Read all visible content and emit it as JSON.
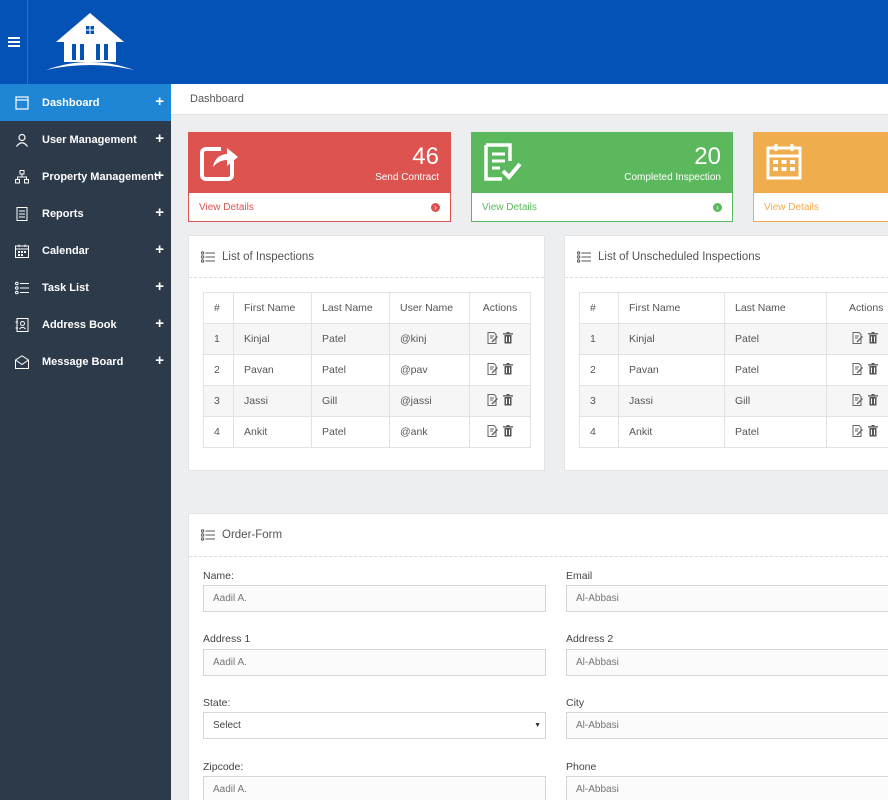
{
  "header": {
    "menu_icon": "hamburger-icon",
    "logo_icon": "house-logo-icon",
    "brand_color": "#0452b5"
  },
  "sidebar": {
    "items": [
      {
        "label": "Dashboard",
        "icon": "window-icon",
        "active": true
      },
      {
        "label": "User Management",
        "icon": "user-icon"
      },
      {
        "label": "Property Management",
        "icon": "sitemap-icon"
      },
      {
        "label": "Reports",
        "icon": "report-icon"
      },
      {
        "label": "Calendar",
        "icon": "calendar-icon"
      },
      {
        "label": "Task List",
        "icon": "list-icon"
      },
      {
        "label": "Address Book",
        "icon": "address-book-icon"
      },
      {
        "label": "Message Board",
        "icon": "envelope-icon"
      }
    ],
    "expand_symbol": "+"
  },
  "breadcrumb": {
    "text": "Dashboard"
  },
  "stats": [
    {
      "value": "46",
      "label": "Send Contract",
      "link": "View Details",
      "color": "#dc534f",
      "icon": "share-icon"
    },
    {
      "value": "20",
      "label": "Completed Inspection",
      "link": "View Details",
      "color": "#5cb85c",
      "icon": "checklist-icon"
    },
    {
      "value": "",
      "label": "",
      "link": "View Details",
      "color": "#f0ad4e",
      "icon": "calendar-icon"
    }
  ],
  "inspections": {
    "title": "List of Inspections",
    "columns": [
      "#",
      "First Name",
      "Last Name",
      "User Name",
      "Actions"
    ],
    "rows": [
      [
        "1",
        "Kinjal",
        "Patel",
        "@kinj"
      ],
      [
        "2",
        "Pavan",
        "Patel",
        "@pav"
      ],
      [
        "3",
        "Jassi",
        "Gill",
        "@jassi"
      ],
      [
        "4",
        "Ankit",
        "Patel",
        "@ank"
      ]
    ]
  },
  "unscheduled": {
    "title": "List of Unscheduled Inspections",
    "columns": [
      "#",
      "First Name",
      "Last Name",
      "Actions"
    ],
    "rows": [
      [
        "1",
        "Kinjal",
        "Patel"
      ],
      [
        "2",
        "Pavan",
        "Patel"
      ],
      [
        "3",
        "Jassi",
        "Gill"
      ],
      [
        "4",
        "Ankit",
        "Patel"
      ]
    ]
  },
  "order_form": {
    "title": "Order-Form",
    "name_label": "Name:",
    "name_placeholder": "Aadil A.",
    "email_label": "Email",
    "email_placeholder": "Al-Abbasi",
    "address1_label": "Address 1",
    "address1_placeholder": "Aadil A.",
    "address2_label": "Address 2",
    "address2_placeholder": "Al-Abbasi",
    "state_label": "State:",
    "state_value": "Select",
    "city_label": "City",
    "city_placeholder": "Al-Abbasi",
    "zipcode_label": "Zipcode:",
    "zipcode_placeholder": "Aadil A.",
    "phone_label": "Phone",
    "phone_placeholder": "Al-Abbasi"
  }
}
